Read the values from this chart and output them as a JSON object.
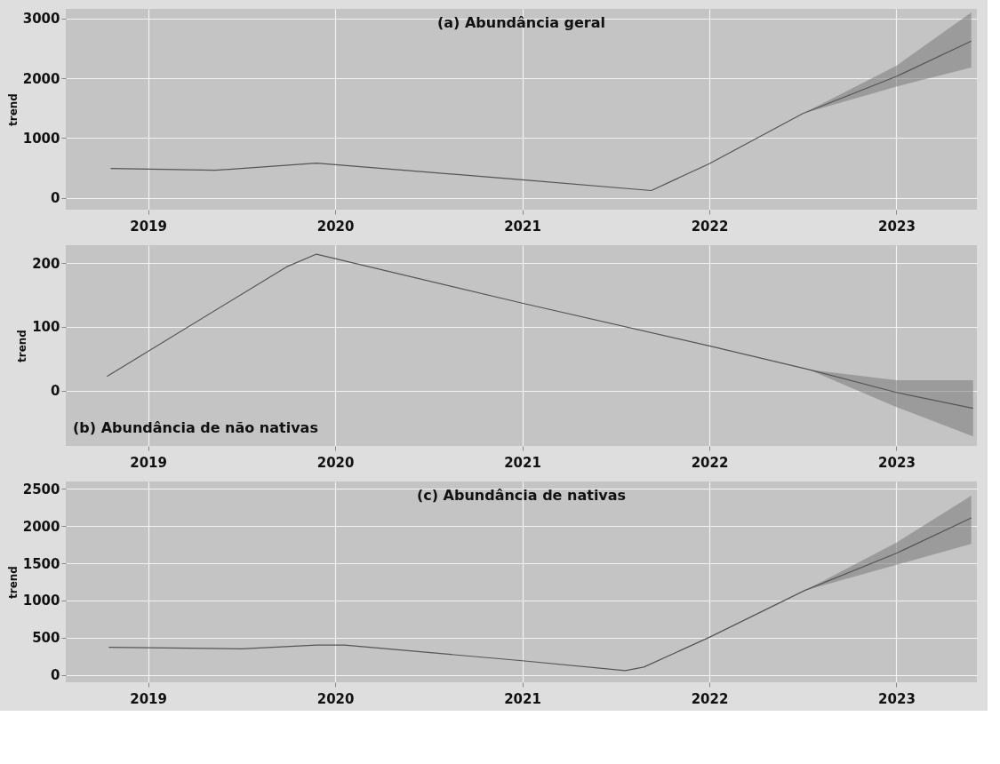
{
  "chart_data": [
    {
      "type": "line",
      "title": "(a) Abundância geral",
      "ylabel": "trend",
      "x": [
        2018.8,
        2019.36,
        2019.9,
        2021.0,
        2021.69,
        2022.0,
        2022.5,
        2023.0,
        2023.4
      ],
      "xlim": [
        2018.56,
        2023.43
      ],
      "xticks": [
        2019,
        2020,
        2021,
        2022,
        2023
      ],
      "ylim": [
        -200,
        3160
      ],
      "yticks": [
        0,
        1000,
        2000,
        3000
      ],
      "grid": true,
      "series": [
        {
          "color": "#555555",
          "values": [
            490,
            460,
            580,
            300,
            120,
            570,
            1410,
            2030,
            2620
          ],
          "lower": [
            null,
            null,
            null,
            null,
            null,
            null,
            1410,
            1860,
            2180
          ],
          "upper": [
            null,
            null,
            null,
            null,
            null,
            null,
            1410,
            2210,
            3100
          ]
        }
      ]
    },
    {
      "type": "line",
      "title": "(b) Abundância de não nativas",
      "ylabel": "trend",
      "x": [
        2018.78,
        2019.74,
        2019.9,
        2021.0,
        2022.0,
        2022.53,
        2023.0,
        2023.41
      ],
      "xlim": [
        2018.56,
        2023.43
      ],
      "xticks": [
        2019,
        2020,
        2021,
        2022,
        2023
      ],
      "ylim": [
        -87,
        228
      ],
      "yticks": [
        0,
        100,
        200
      ],
      "grid": true,
      "series": [
        {
          "color": "#555555",
          "values": [
            22,
            194,
            214,
            137,
            70,
            33,
            -3,
            -28
          ],
          "lower": [
            null,
            null,
            null,
            null,
            null,
            33,
            -26,
            -72
          ],
          "upper": [
            null,
            null,
            null,
            null,
            null,
            33,
            16,
            16
          ]
        }
      ]
    },
    {
      "type": "line",
      "title": "(c) Abundância  de nativas",
      "ylabel": "trend",
      "x": [
        2018.79,
        2019.5,
        2019.9,
        2020.05,
        2021.0,
        2021.55,
        2021.65,
        2022.0,
        2022.51,
        2023.0,
        2023.4
      ],
      "xlim": [
        2018.56,
        2023.43
      ],
      "xticks": [
        2019,
        2020,
        2021,
        2022,
        2023
      ],
      "ylim": [
        -100,
        2600
      ],
      "yticks": [
        0,
        500,
        1000,
        1500,
        2000,
        2500
      ],
      "grid": true,
      "series": [
        {
          "color": "#555555",
          "values": [
            370,
            350,
            400,
            400,
            190,
            57,
            105,
            505,
            1135,
            1635,
            2110
          ],
          "lower": [
            null,
            null,
            null,
            null,
            null,
            null,
            null,
            null,
            1135,
            1480,
            1760
          ],
          "upper": [
            null,
            null,
            null,
            null,
            null,
            null,
            null,
            null,
            1135,
            1780,
            2410
          ]
        }
      ]
    }
  ]
}
